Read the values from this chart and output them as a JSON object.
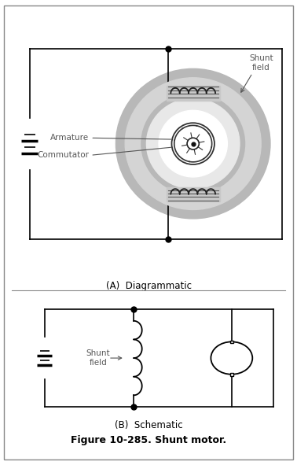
{
  "title": "Figure 10-285. Shunt motor.",
  "panel_A_label": "(A)  Diagrammatic",
  "panel_B_label": "(B)  Schematic",
  "shunt_field_label": "Shunt\nfield",
  "armature_label": "Armature",
  "commutator_label": "Commutator",
  "shunt_field_B_label": "Shunt\nfield",
  "bg_color": "#ffffff",
  "line_color": "#000000",
  "ring_outer_color": "#b8b8b8",
  "ring_mid_color": "#d4d4d4",
  "ring_inner_color": "#e8e8e8",
  "coil_bg_color": "#c8c8c8",
  "border_color": "#888888",
  "label_color": "#555555"
}
